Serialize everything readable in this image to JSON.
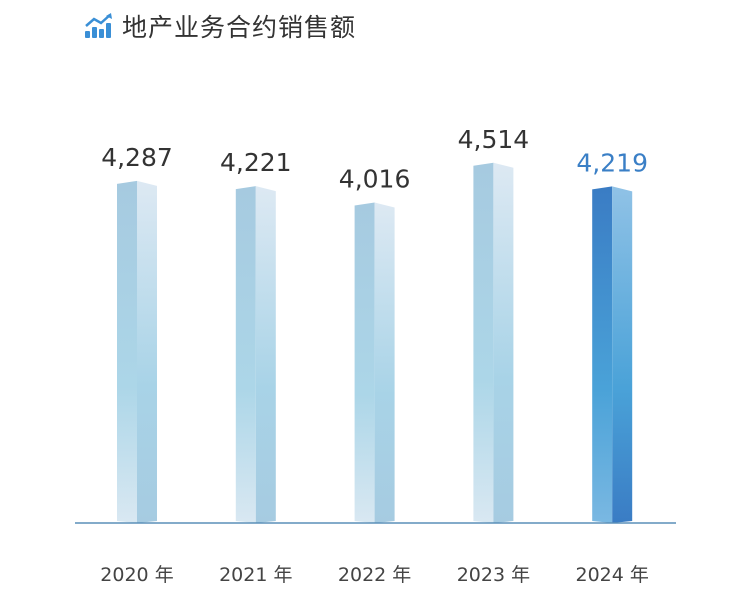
{
  "chart_data": {
    "type": "bar",
    "title": "地产业务合约销售额",
    "categories": [
      "2020 年",
      "2021 年",
      "2022 年",
      "2023 年",
      "2024 年"
    ],
    "values": [
      4287,
      4221,
      4016,
      4514,
      4219
    ],
    "value_labels": [
      "4,287",
      "4,221",
      "4,016",
      "4,514",
      "4,219"
    ],
    "highlight_index": 4,
    "xlabel": "",
    "ylabel": "",
    "ylim": [
      0,
      4514
    ],
    "grid": false,
    "colors": {
      "normal": "#a9cfe3",
      "highlight": "#3a7fc6",
      "label": "#333333",
      "highlight_label": "#3a7fc6",
      "axis": "#5a8fb8"
    }
  }
}
